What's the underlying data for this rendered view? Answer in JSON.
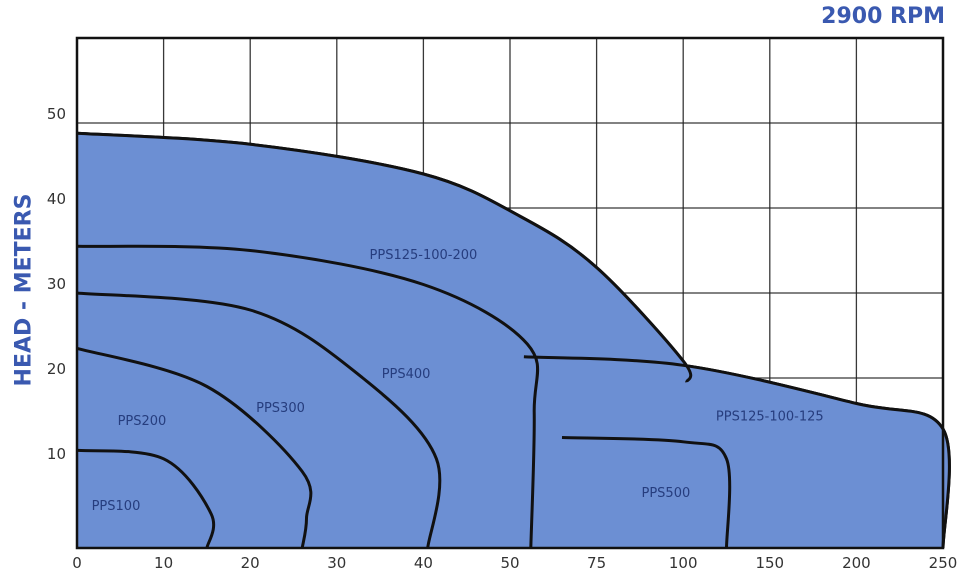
{
  "chart_data": {
    "type": "area",
    "title": "2900 RPM",
    "ylabel": "HEAD - METERS",
    "xlabel": "",
    "x_ticks": [
      "0",
      "10",
      "20",
      "30",
      "40",
      "50",
      "75",
      "100",
      "150",
      "200",
      "250"
    ],
    "y_ticks": [
      "10",
      "20",
      "30",
      "40",
      "50"
    ],
    "ylim": [
      0,
      60
    ],
    "grid": true,
    "colors": {
      "fill": "#6c8fd3",
      "stroke": "#111111",
      "accent": "#3a59b0"
    },
    "series": [
      {
        "name": "PPS125-100-200",
        "points": [
          [
            0,
            48.8
          ],
          [
            20,
            47.5
          ],
          [
            40,
            44
          ],
          [
            53,
            39
          ],
          [
            75,
            33
          ],
          [
            100,
            22
          ],
          [
            102,
            19.5
          ]
        ],
        "label_at": [
          40,
          34
        ]
      },
      {
        "name": "PPS400",
        "points": [
          [
            0,
            35.5
          ],
          [
            20,
            35
          ],
          [
            40,
            31
          ],
          [
            55,
            24
          ],
          [
            57,
            16
          ],
          [
            56,
            0
          ]
        ],
        "label_at": [
          38,
          20
        ]
      },
      {
        "name": "PPS300",
        "points": [
          [
            0,
            30
          ],
          [
            20,
            28
          ],
          [
            33,
            20
          ],
          [
            41.5,
            10.5
          ],
          [
            40.5,
            0
          ]
        ],
        "label_at": [
          23.5,
          16
        ]
      },
      {
        "name": "PPS200",
        "points": [
          [
            0,
            23.5
          ],
          [
            15,
            19
          ],
          [
            26,
            9
          ],
          [
            26.5,
            3.5
          ],
          [
            26,
            0
          ]
        ],
        "label_at": [
          7.5,
          14.5
        ]
      },
      {
        "name": "PPS100",
        "points": [
          [
            0,
            11.5
          ],
          [
            10,
            10.5
          ],
          [
            15.5,
            4
          ],
          [
            15,
            0
          ]
        ],
        "label_at": [
          4.5,
          4.5
        ]
      },
      {
        "name": "PPS125-100-125",
        "points": [
          [
            54,
            22.5
          ],
          [
            100,
            21.5
          ],
          [
            200,
            17
          ],
          [
            250,
            14
          ],
          [
            250,
            0
          ]
        ],
        "label_at": [
          150,
          15
        ]
      },
      {
        "name": "PPS500",
        "points": [
          [
            65,
            13
          ],
          [
            100,
            12.5
          ],
          [
            125,
            10.5
          ],
          [
            125,
            0
          ]
        ],
        "label_at": [
          95,
          6
        ]
      }
    ]
  }
}
